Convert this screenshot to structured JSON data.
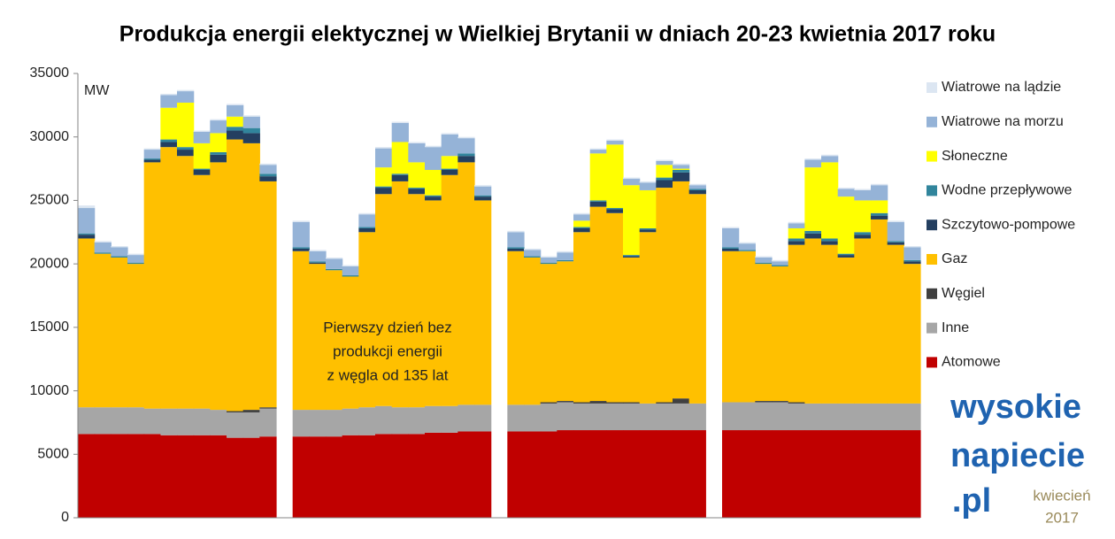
{
  "chart_data": {
    "type": "stacked-bar",
    "title": "Produkcja energii elektycznej w Wielkiej Brytanii w dniach 20-23 kwietnia 2017 roku",
    "unit_label": "MW",
    "annotation": [
      "Pierwszy dzień bez",
      "produkcji energii",
      "z węgla od 135 lat"
    ],
    "ylim": [
      0,
      35000
    ],
    "yticks": [
      0,
      5000,
      10000,
      15000,
      20000,
      25000,
      30000,
      35000
    ],
    "legend": "right",
    "series": [
      {
        "name": "Atomowe",
        "color": "#c00000",
        "values": [
          6600,
          6600,
          6600,
          6600,
          6600,
          6500,
          6500,
          6500,
          6500,
          6300,
          6300,
          6400,
          null,
          6400,
          6400,
          6400,
          6500,
          6500,
          6600,
          6600,
          6600,
          6700,
          6700,
          6800,
          6800,
          null,
          6800,
          6800,
          6800,
          6900,
          6900,
          6900,
          6900,
          6900,
          6900,
          6900,
          6900,
          6900,
          null,
          6900,
          6900,
          6900,
          6900,
          6900,
          6900,
          6900,
          6900,
          6900,
          6900,
          6900,
          6900
        ]
      },
      {
        "name": "Inne",
        "color": "#a6a6a6",
        "values": [
          2100,
          2100,
          2100,
          2100,
          2000,
          2100,
          2100,
          2100,
          2000,
          2000,
          2000,
          2200,
          null,
          2100,
          2100,
          2100,
          2100,
          2200,
          2200,
          2100,
          2100,
          2100,
          2100,
          2100,
          2100,
          null,
          2100,
          2100,
          2200,
          2200,
          2100,
          2100,
          2100,
          2100,
          2100,
          2100,
          2100,
          2100,
          null,
          2200,
          2200,
          2200,
          2200,
          2100,
          2100,
          2100,
          2100,
          2100,
          2100,
          2100,
          2100
        ]
      },
      {
        "name": "Węgiel",
        "color": "#404040",
        "values": [
          0,
          0,
          0,
          0,
          0,
          0,
          0,
          0,
          0,
          100,
          200,
          100,
          null,
          0,
          0,
          0,
          0,
          0,
          0,
          0,
          0,
          0,
          0,
          0,
          0,
          null,
          0,
          0,
          100,
          100,
          100,
          200,
          100,
          100,
          0,
          100,
          400,
          0,
          null,
          0,
          0,
          100,
          100,
          100,
          0,
          0,
          0,
          0,
          0,
          0,
          0
        ]
      },
      {
        "name": "Gaz",
        "color": "#ffc000",
        "values": [
          13300,
          12100,
          11800,
          11300,
          19400,
          20600,
          19900,
          18400,
          19500,
          21400,
          21000,
          17800,
          null,
          12500,
          11500,
          11000,
          10400,
          13800,
          16700,
          17800,
          16800,
          16200,
          18200,
          19100,
          16100,
          null,
          12100,
          11600,
          10900,
          11000,
          13400,
          15300,
          14900,
          11400,
          13500,
          16900,
          17100,
          16500,
          null,
          11900,
          11900,
          10800,
          10600,
          12400,
          13000,
          12500,
          11500,
          13000,
          14500,
          12500,
          11000
        ]
      },
      {
        "name": "Szczytowo-pompowe",
        "color": "#243f60",
        "values": [
          300,
          0,
          0,
          0,
          200,
          400,
          500,
          400,
          600,
          700,
          800,
          400,
          null,
          200,
          100,
          0,
          0,
          300,
          500,
          500,
          400,
          300,
          400,
          500,
          300,
          null,
          200,
          0,
          0,
          0,
          300,
          400,
          300,
          100,
          200,
          600,
          700,
          300,
          null,
          200,
          0,
          0,
          0,
          300,
          400,
          300,
          200,
          300,
          300,
          200,
          200
        ]
      },
      {
        "name": "Wodne przepływowe",
        "color": "#31859c",
        "values": [
          100,
          100,
          100,
          100,
          100,
          200,
          200,
          100,
          200,
          300,
          400,
          200,
          null,
          100,
          100,
          100,
          100,
          100,
          100,
          100,
          100,
          100,
          100,
          200,
          100,
          null,
          100,
          100,
          100,
          100,
          100,
          100,
          100,
          100,
          100,
          200,
          200,
          100,
          null,
          100,
          100,
          100,
          100,
          200,
          200,
          200,
          100,
          200,
          200,
          100,
          100
        ]
      },
      {
        "name": "Słoneczne",
        "color": "#ffff00",
        "values": [
          0,
          0,
          0,
          0,
          0,
          2500,
          3500,
          2000,
          1500,
          800,
          0,
          0,
          null,
          0,
          0,
          0,
          0,
          0,
          1500,
          2500,
          2000,
          2000,
          1000,
          0,
          0,
          null,
          0,
          0,
          0,
          0,
          500,
          3700,
          5000,
          5500,
          3000,
          1000,
          100,
          0,
          null,
          0,
          0,
          0,
          0,
          800,
          5000,
          6000,
          4500,
          2500,
          1000,
          0,
          0
        ]
      },
      {
        "name": "Wiatrowe na morzu",
        "color": "#95b3d7",
        "values": [
          2000,
          800,
          700,
          600,
          700,
          1000,
          900,
          900,
          1000,
          900,
          900,
          700,
          null,
          2000,
          800,
          800,
          700,
          1000,
          1500,
          1500,
          1500,
          1800,
          1700,
          1200,
          700,
          null,
          1200,
          500,
          400,
          600,
          500,
          300,
          300,
          500,
          600,
          300,
          300,
          300,
          null,
          1500,
          500,
          400,
          300,
          400,
          600,
          500,
          600,
          800,
          1200,
          1500,
          1000
        ]
      },
      {
        "name": "Wiatrowe na lądzie",
        "color": "#dce6f2",
        "values": [
          200,
          100,
          100,
          100,
          100,
          100,
          100,
          100,
          100,
          100,
          100,
          100,
          null,
          100,
          100,
          100,
          100,
          100,
          100,
          100,
          100,
          100,
          100,
          100,
          100,
          null,
          100,
          100,
          100,
          100,
          100,
          100,
          100,
          100,
          100,
          100,
          100,
          100,
          null,
          100,
          100,
          100,
          100,
          100,
          100,
          100,
          100,
          100,
          100,
          100,
          100
        ]
      }
    ]
  },
  "logo": {
    "lines": [
      "wysokie",
      "napiecie",
      ".pl"
    ],
    "date": [
      "kwiecień",
      "2017"
    ]
  }
}
